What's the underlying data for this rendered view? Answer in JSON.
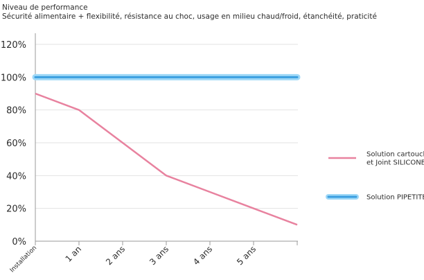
{
  "chart_data": {
    "type": "line",
    "title": "Niveau de performance",
    "subtitle": "Sécurité alimentaire + flexibilité, résistance au choc, usage en milieu chaud/froid, étanchéité, praticité",
    "xlabel": "",
    "ylabel": "",
    "categories": [
      "Installation",
      "1 an",
      "2 ans",
      "3 ans",
      "4 ans",
      "5 ans",
      ""
    ],
    "y_ticks": [
      "0%",
      "20%",
      "40%",
      "60%",
      "80%",
      "100%",
      "120%"
    ],
    "ylim": [
      0,
      120
    ],
    "grid": true,
    "legend_position": "right",
    "series": [
      {
        "name": [
          "Solution cartouche",
          "et Joint SILICONE"
        ],
        "color": "#e8829f",
        "values": [
          90,
          80,
          60,
          40,
          30,
          20,
          10
        ]
      },
      {
        "name": [
          "Solution PIPETITE"
        ],
        "color": "#3b9fe0",
        "glow": "#9fd8f7",
        "values": [
          100,
          100,
          100,
          100,
          100,
          100,
          100
        ]
      }
    ]
  }
}
